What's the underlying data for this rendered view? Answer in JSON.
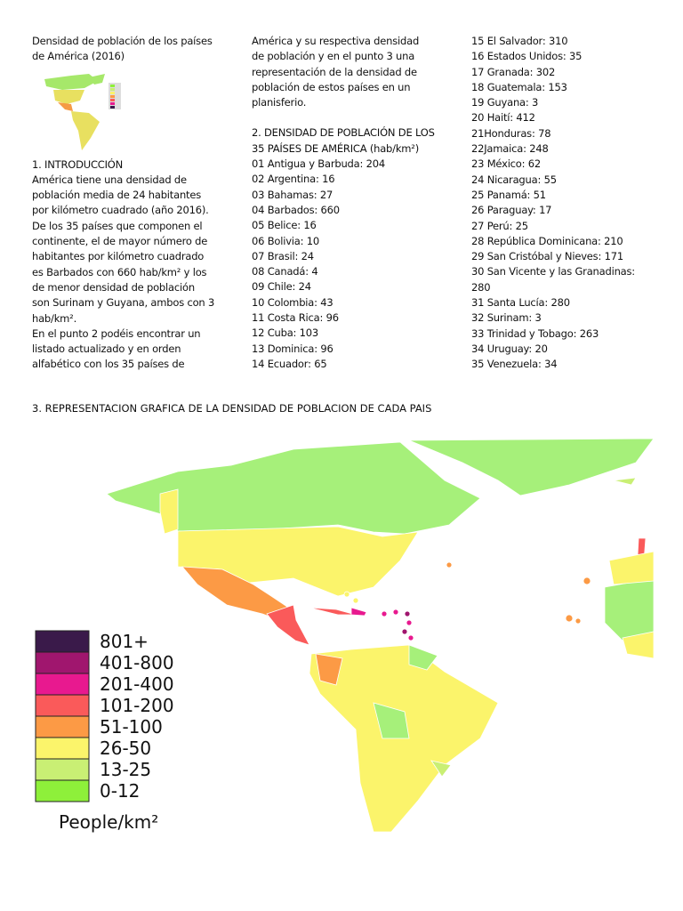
{
  "header": {
    "title": [
      "Densidad de población de los países",
      "de América (2016)"
    ]
  },
  "intro": {
    "heading": "1. INTRODUCCIÓN",
    "lines_col1": [
      "América tiene una densidad de",
      "población media de 24 habitantes",
      "por kilómetro cuadrado (año 2016).",
      "De los 35 países que componen el",
      "continente, el de mayor número de",
      "habitantes por kilómetro cuadrado",
      "es Barbados con 660 hab/km² y los",
      "de menor densidad de población",
      "son Surinam y Guyana, ambos con 3",
      "hab/km².",
      "En el punto 2 podéis encontrar un",
      "listado actualizado y en orden",
      "alfabético con los 35 países de"
    ],
    "lines_col2": [
      "América y su respectiva densidad",
      "de población y en el punto 3 una",
      "representación de la densidad de",
      "población de estos países en un",
      "planisferio."
    ]
  },
  "list": {
    "heading": [
      "2. DENSIDAD DE POBLACIÓN DE LOS",
      "35 PAÍSES DE AMÉRICA (hab/km²)"
    ],
    "items_col2": [
      "01 Antigua y Barbuda: 204",
      "02 Argentina: 16",
      "03 Bahamas: 27",
      "04 Barbados: 660",
      "05 Belice: 16",
      "06 Bolivia: 10",
      "07 Brasil: 24",
      "08 Canadá: 4",
      "09 Chile: 24",
      "10 Colombia: 43",
      "11 Costa Rica: 96",
      "12 Cuba: 103",
      "13 Dominica: 96",
      "14 Ecuador: 65"
    ],
    "items_col3": [
      "15 El Salvador: 310",
      "16 Estados Unidos: 35",
      "17 Granada: 302",
      "18 Guatemala: 153",
      "19 Guyana: 3",
      "20 Haití: 412",
      "21Honduras: 78",
      "22Jamaica: 248",
      "23 México: 62",
      "24 Nicaragua: 55",
      "25 Panamá: 51",
      "26 Paraguay: 17",
      "27 Perú: 25",
      "28 República Dominicana: 210",
      "29 San Cristóbal y Nieves: 171",
      "30 San Vicente y las Granadinas: 280",
      "31 Santa Lucía: 280",
      "32 Surinam: 3",
      "33 Trinidad y Tobago: 263",
      "34 Uruguay: 20",
      "35 Venezuela: 34"
    ]
  },
  "map_section": {
    "heading": "3. REPRESENTACION GRAFICA DE LA DENSIDAD DE POBLACION DE CADA PAIS",
    "legend": {
      "items": [
        {
          "label": "801+",
          "color": "#3a1a4a"
        },
        {
          "label": "401-800",
          "color": "#a0166e"
        },
        {
          "label": "201-400",
          "color": "#e8198f"
        },
        {
          "label": "101-200",
          "color": "#fa5a5a"
        },
        {
          "label": "51-100",
          "color": "#fc9a45"
        },
        {
          "label": "26-50",
          "color": "#fbf46b"
        },
        {
          "label": "13-25",
          "color": "#c9ef74"
        },
        {
          "label": "0-12",
          "color": "#8ef03a"
        }
      ],
      "unit": "People/km²"
    }
  }
}
